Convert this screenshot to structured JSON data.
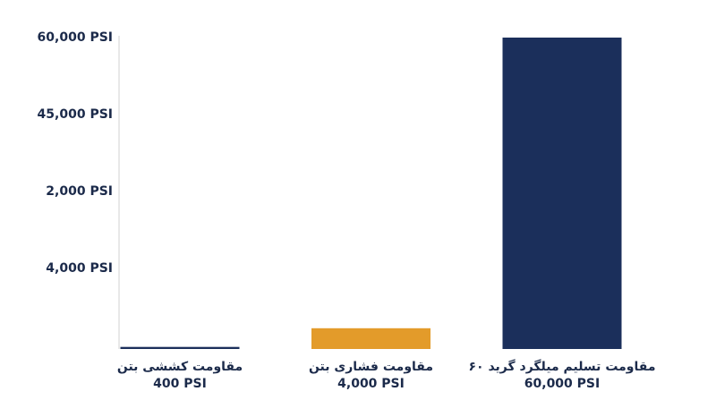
{
  "chart_data": {
    "type": "bar",
    "categories": [
      "مقاومت کششی بتن",
      "مقاومت فشاری بتن",
      "مقاومت تسلیم میلگرد گرید ۶۰"
    ],
    "values": [
      400,
      4000,
      60000
    ],
    "value_labels": [
      "400 PSI",
      "4,000 PSI",
      "60,000 PSI"
    ],
    "colors": [
      "#1b2f5b",
      "#e39b2a",
      "#1b2f5b"
    ],
    "ylim": [
      0,
      60000
    ],
    "y_axis_labels": [
      "60,000 PSI",
      "45,000 PSI",
      "2,000 PSI",
      "4,000 PSI"
    ]
  }
}
